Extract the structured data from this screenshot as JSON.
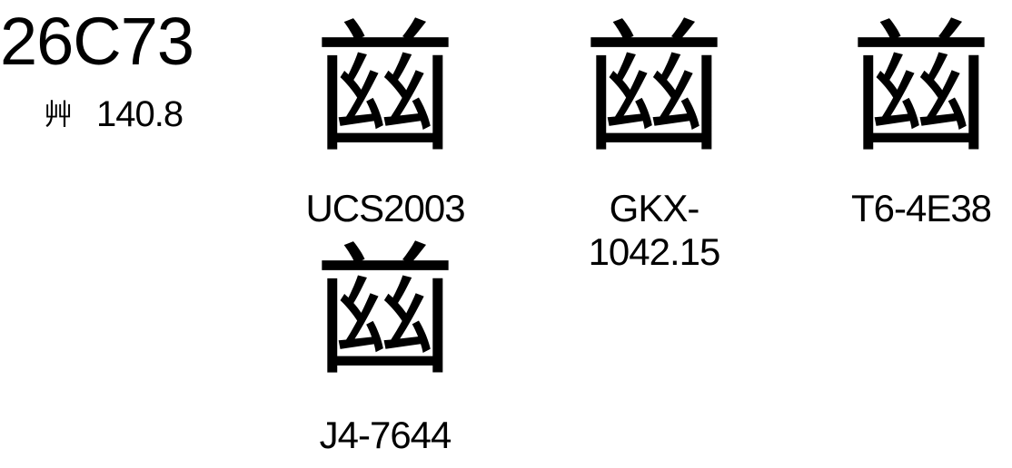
{
  "codepoint": "26C73",
  "radical": "艸",
  "stroke_index": "140.8",
  "glyphs": [
    {
      "char": "𦱳",
      "source": "UCS2003"
    },
    {
      "char": "𦱳",
      "source": "GKX-1042.15"
    },
    {
      "char": "𦱳",
      "source": "T6-4E38"
    },
    {
      "char": "𦱳",
      "source": "J4-7644"
    }
  ]
}
